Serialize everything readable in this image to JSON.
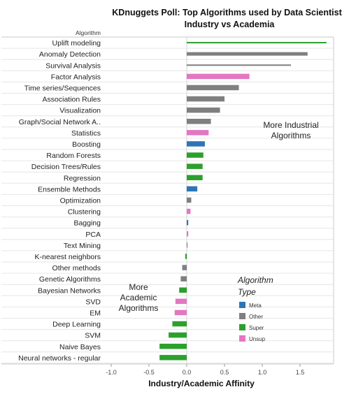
{
  "chart_data": {
    "type": "bar",
    "title": [
      "KDnuggets Poll: Top Algorithms used by Data Scientists",
      "Industry vs Academia"
    ],
    "row_header": "Algorithm",
    "xlabel": "Industry/Academic Affinity",
    "xlim": [
      -1.2,
      1.8
    ],
    "xticks": [
      "-1.0",
      "-0.5",
      "0.0",
      "0.5",
      "1.0",
      "1.5"
    ],
    "xtick_values": [
      -1.0,
      -0.5,
      0.0,
      0.5,
      1.0,
      1.5
    ],
    "bars": [
      {
        "name": "Uplift modeling",
        "value": 1.85,
        "type": "Super"
      },
      {
        "name": "Anomaly Detection",
        "value": 1.6,
        "type": "Other"
      },
      {
        "name": "Survival Analysis",
        "value": 1.38,
        "type": "Other"
      },
      {
        "name": "Factor Analysis",
        "value": 0.83,
        "type": "Unsup"
      },
      {
        "name": "Time series/Sequences",
        "value": 0.69,
        "type": "Other"
      },
      {
        "name": "Association Rules",
        "value": 0.5,
        "type": "Other"
      },
      {
        "name": "Visualization",
        "value": 0.44,
        "type": "Other"
      },
      {
        "name": "Graph/Social Network A..",
        "value": 0.32,
        "type": "Other"
      },
      {
        "name": "Statistics",
        "value": 0.29,
        "type": "Unsup"
      },
      {
        "name": "Boosting",
        "value": 0.24,
        "type": "Meta"
      },
      {
        "name": "Random Forests",
        "value": 0.22,
        "type": "Super"
      },
      {
        "name": "Decision Trees/Rules",
        "value": 0.21,
        "type": "Super"
      },
      {
        "name": "Regression",
        "value": 0.21,
        "type": "Super"
      },
      {
        "name": "Ensemble Methods",
        "value": 0.14,
        "type": "Meta"
      },
      {
        "name": "Optimization",
        "value": 0.06,
        "type": "Other"
      },
      {
        "name": "Clustering",
        "value": 0.05,
        "type": "Unsup"
      },
      {
        "name": "Bagging",
        "value": 0.02,
        "type": "Meta"
      },
      {
        "name": "PCA",
        "value": 0.02,
        "type": "Unsup"
      },
      {
        "name": "Text Mining",
        "value": 0.01,
        "type": "Other"
      },
      {
        "name": "K-nearest neighbors",
        "value": -0.02,
        "type": "Super"
      },
      {
        "name": "Other methods",
        "value": -0.06,
        "type": "Other"
      },
      {
        "name": "Genetic Algorithms",
        "value": -0.08,
        "type": "Other"
      },
      {
        "name": "Bayesian Networks",
        "value": -0.1,
        "type": "Super"
      },
      {
        "name": "SVD",
        "value": -0.15,
        "type": "Unsup"
      },
      {
        "name": "EM",
        "value": -0.16,
        "type": "Unsup"
      },
      {
        "name": "Deep Learning",
        "value": -0.19,
        "type": "Super"
      },
      {
        "name": "SVM",
        "value": -0.24,
        "type": "Super"
      },
      {
        "name": "Naive Bayes",
        "value": -0.36,
        "type": "Super"
      },
      {
        "name": "Neural networks - regular",
        "value": -0.36,
        "type": "Super"
      }
    ],
    "legend": {
      "title": [
        "Algorithm",
        "Type"
      ],
      "placement": "bottom-right",
      "items": [
        {
          "label": "Meta",
          "color": "#2e75b6"
        },
        {
          "label": "Other",
          "color": "#7f7f7f"
        },
        {
          "label": "Super",
          "color": "#2ca02c"
        },
        {
          "label": "Unsup",
          "color": "#e377c2"
        }
      ]
    },
    "annotations": [
      {
        "lines": [
          "More Industrial",
          "Algorithms"
        ],
        "placement": "upper-right"
      },
      {
        "lines": [
          "More",
          "Academic",
          "Algorithms"
        ],
        "placement": "lower-left"
      }
    ],
    "grid": false
  }
}
